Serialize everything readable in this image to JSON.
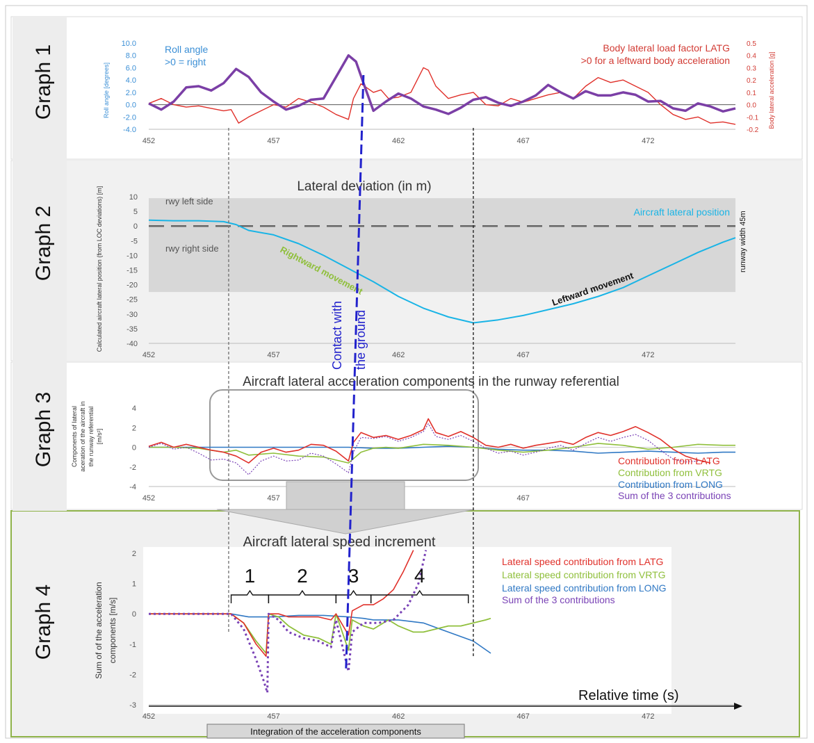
{
  "panels": {
    "g1": {
      "label": "Graph 1"
    },
    "g2": {
      "label": "Graph 2"
    },
    "g3": {
      "label": "Graph 3"
    },
    "g4": {
      "label": "Graph 4"
    }
  },
  "colors": {
    "roll": "#7b3fa6",
    "latg": "#e0302a",
    "lateral_position": "#19b4e6",
    "vrtg": "#8fbf3b",
    "long": "#2f78c4",
    "sum": "#7a43b6",
    "contact_line": "#2222cc",
    "runway_fill": "#d7d7d7",
    "panel4_border": "#8fb34a"
  },
  "chart_data": [
    {
      "id": "graph1",
      "type": "line",
      "xlim": [
        452,
        475.5
      ],
      "x_ticks": [
        "452",
        "457",
        "462",
        "467",
        "472"
      ],
      "ylabel_left": "Roll angle [degrees]",
      "ylim_left": [
        -4,
        10
      ],
      "y_ticks_left": [
        "10.0",
        "8.0",
        "6.0",
        "4.0",
        "2.0",
        "0.0",
        "-2.0",
        "-4.0"
      ],
      "ylabel_right": "Body lateral acceleration [g]",
      "ylim_right": [
        -0.2,
        0.5
      ],
      "y_ticks_right": [
        "0.5",
        "0.4",
        "0.3",
        "0.2",
        "0.1",
        "0.0",
        "-0.1",
        "-0.2"
      ],
      "grid": false,
      "legend_left": [
        "Roll angle",
        ">0 = right"
      ],
      "legend_right": [
        "Body lateral load factor LATG",
        ">0 for a leftward body acceleration"
      ],
      "series": [
        {
          "axis": "left",
          "x": [
            452,
            452.5,
            453,
            453.5,
            454,
            454.5,
            455,
            455.5,
            456,
            456.5,
            457,
            457.5,
            458,
            458.5,
            459,
            459.5,
            460,
            460.3,
            460.6,
            461,
            461.5,
            462,
            462.5,
            463,
            463.5,
            464,
            464.5,
            465,
            465.5,
            466,
            466.5,
            467,
            467.5,
            468,
            468.5,
            469,
            469.5,
            470,
            470.5,
            471,
            471.5,
            472,
            472.5,
            473,
            473.5,
            474,
            474.5,
            475,
            475.5
          ],
          "y": [
            0.2,
            -0.8,
            0.5,
            2.8,
            3.0,
            2.3,
            3.5,
            5.8,
            4.5,
            2.0,
            0.5,
            -0.8,
            -0.2,
            0.8,
            1.0,
            4.5,
            8.0,
            7.0,
            3.5,
            -1.0,
            0.5,
            1.8,
            1.0,
            -0.3,
            -0.8,
            -1.5,
            -0.5,
            0.8,
            1.2,
            0.3,
            -0.2,
            0.5,
            1.5,
            3.2,
            2.0,
            1.0,
            2.2,
            1.5,
            1.5,
            2.0,
            1.6,
            0.5,
            0.6,
            -0.6,
            -1.0,
            0.2,
            -0.3,
            -1.1,
            -0.6
          ]
        },
        {
          "axis": "right",
          "x": [
            452,
            452.5,
            453,
            453.5,
            454,
            454.5,
            455,
            455.3,
            455.6,
            456,
            456.5,
            457,
            457.5,
            458,
            458.5,
            459,
            459.5,
            460,
            460.2,
            460.5,
            461,
            461.3,
            461.6,
            462,
            462.5,
            463,
            463.2,
            463.5,
            464,
            464.5,
            465,
            465.5,
            466,
            466.5,
            467,
            467.5,
            468,
            468.5,
            469,
            469.5,
            470,
            470.5,
            471,
            471.5,
            472,
            472.5,
            473,
            473.5,
            474,
            474.5,
            475,
            475.5
          ],
          "y": [
            0.01,
            0.05,
            0.0,
            -0.02,
            -0.01,
            -0.03,
            -0.05,
            -0.04,
            -0.15,
            -0.1,
            -0.05,
            0.0,
            -0.02,
            0.05,
            0.02,
            -0.02,
            -0.08,
            -0.12,
            0.05,
            0.17,
            0.1,
            0.12,
            0.05,
            0.06,
            0.1,
            0.3,
            0.28,
            0.15,
            0.05,
            0.08,
            0.1,
            0.0,
            -0.01,
            0.05,
            0.02,
            0.05,
            0.08,
            0.1,
            0.05,
            0.15,
            0.22,
            0.18,
            0.2,
            0.15,
            0.1,
            0.0,
            -0.08,
            -0.12,
            -0.1,
            -0.15,
            -0.14,
            -0.16
          ]
        }
      ]
    },
    {
      "id": "graph2",
      "type": "line",
      "title": "Lateral deviation (in m)",
      "xlim": [
        452,
        475.5
      ],
      "x_ticks": [
        "452",
        "457",
        "462",
        "467",
        "472"
      ],
      "ylim": [
        -40,
        10
      ],
      "y_ticks": [
        "10",
        "5",
        "0",
        "-5",
        "-10",
        "-15",
        "-20",
        "-25",
        "-30",
        "-35",
        "-40"
      ],
      "ylabel": "Calculated aircraft lateral position (from LOC deviations) [m]",
      "runway_band": [
        -22.5,
        9.5
      ],
      "runway_labels": {
        "left": "rwy left side",
        "right": "rwy right side",
        "width": "runway width 45m"
      },
      "grid": false,
      "annotations": [
        "Aircraft lateral position",
        "Rightward movement",
        "Leftward movement",
        "Contact with the ground"
      ],
      "series": [
        {
          "name": "Aircraft lateral position",
          "x": [
            452,
            453,
            454,
            455,
            455.5,
            456,
            457,
            458,
            459,
            460,
            461,
            462,
            463,
            464,
            465,
            466,
            467,
            468,
            469,
            470,
            471,
            472,
            473,
            474,
            475,
            475.5
          ],
          "y": [
            2.0,
            1.8,
            1.8,
            1.5,
            0.5,
            -1.5,
            -3.0,
            -6.0,
            -10.0,
            -14.5,
            -19.0,
            -24.0,
            -28.0,
            -31.0,
            -33.0,
            -32.0,
            -30.5,
            -28.5,
            -26.5,
            -24.0,
            -21.0,
            -17.0,
            -13.0,
            -9.0,
            -5.5,
            -4.0
          ]
        }
      ]
    },
    {
      "id": "graph3",
      "type": "line",
      "title": "Aircraft lateral acceleration components in the runway referential",
      "xlim": [
        452,
        475.5
      ],
      "x_ticks": [
        "452",
        "457",
        "462",
        "467"
      ],
      "ylim": [
        -4,
        4
      ],
      "y_ticks": [
        "4",
        "2",
        "0",
        "-2",
        "-4"
      ],
      "ylabel": "Components of lateral acceration of the aircraft in the runway referential [m/s²]",
      "grid": false,
      "legend": [
        "Contribution from LATG",
        "Contribution from VRTG",
        "Contribution from LONG",
        "Sum of the 3 contributions"
      ],
      "series": [
        {
          "name": "Contribution from LATG",
          "x": [
            452,
            452.5,
            453,
            453.5,
            454,
            454.5,
            455,
            455.5,
            456,
            456.5,
            457,
            457.5,
            458,
            458.5,
            459,
            459.5,
            460,
            460.2,
            460.5,
            461,
            461.5,
            462,
            462.5,
            463,
            463.2,
            463.5,
            464,
            464.5,
            465,
            465.5,
            466,
            466.5,
            467,
            467.5,
            468,
            468.5,
            469,
            469.5,
            470,
            470.5,
            471,
            471.5,
            472,
            472.5,
            473,
            473.5,
            474,
            474.5
          ],
          "y": [
            0.1,
            0.5,
            0.0,
            0.3,
            0.0,
            -0.3,
            -0.5,
            -0.9,
            -1.6,
            -0.5,
            -0.1,
            -0.5,
            -0.3,
            0.3,
            0.2,
            -0.4,
            -1.4,
            0.5,
            1.5,
            1.0,
            1.2,
            0.8,
            1.2,
            1.8,
            2.9,
            1.5,
            1.1,
            1.6,
            1.0,
            0.2,
            0.0,
            0.3,
            -0.1,
            0.2,
            0.4,
            0.6,
            0.3,
            1.0,
            1.5,
            1.2,
            1.6,
            2.1,
            1.5,
            0.8,
            -0.2,
            -0.9,
            -1.3,
            -1.6
          ]
        },
        {
          "name": "Contribution from VRTG",
          "x": [
            452,
            453,
            454,
            455,
            455.5,
            456,
            457,
            458,
            459,
            459.5,
            460,
            460.5,
            461,
            461.5,
            462,
            463,
            464,
            465,
            466,
            467,
            468,
            469,
            470,
            471,
            472,
            473,
            474,
            475,
            475.5
          ],
          "y": [
            0.0,
            0.0,
            -0.1,
            -0.5,
            -0.3,
            -0.8,
            -0.6,
            -0.9,
            -1.0,
            -1.3,
            -1.6,
            -0.5,
            -0.1,
            0.0,
            -0.1,
            0.3,
            0.2,
            0.0,
            -0.3,
            -0.5,
            -0.3,
            0.0,
            0.4,
            0.2,
            -0.2,
            0.0,
            0.3,
            0.2,
            0.2
          ]
        },
        {
          "name": "Contribution from LONG",
          "x": [
            452,
            455,
            456,
            458,
            459.5,
            460,
            461,
            462,
            463,
            464,
            465,
            466,
            467,
            468,
            469,
            470,
            471,
            472,
            473,
            474,
            475,
            475.5
          ],
          "y": [
            0.0,
            0.0,
            0.0,
            0.0,
            0.0,
            0.0,
            -0.1,
            -0.1,
            0.0,
            0.1,
            0.0,
            -0.2,
            -0.3,
            -0.3,
            -0.4,
            -0.6,
            -0.5,
            -0.4,
            -0.5,
            -0.6,
            -0.5,
            -0.5
          ]
        },
        {
          "name": "Sum of the 3 contributions",
          "x": [
            452,
            452.5,
            453,
            453.5,
            454,
            454.5,
            455,
            455.5,
            456,
            456.5,
            457,
            457.5,
            458,
            458.5,
            459,
            459.5,
            460,
            460.2,
            460.5,
            461,
            461.5,
            462,
            462.5,
            463,
            463.2,
            463.5,
            464,
            464.5,
            465,
            465.5,
            466,
            466.5,
            467,
            467.5,
            468,
            468.5,
            469,
            469.5,
            470,
            470.5,
            471,
            471.5,
            472,
            472.5,
            473,
            473.5,
            474
          ],
          "y": [
            0.0,
            0.4,
            -0.2,
            0.0,
            -0.6,
            -1.3,
            -1.2,
            -1.6,
            -2.8,
            -1.4,
            -0.9,
            -1.4,
            -1.3,
            -0.6,
            -0.9,
            -1.7,
            -2.6,
            -0.5,
            1.0,
            0.9,
            1.1,
            0.6,
            1.0,
            1.6,
            2.4,
            1.1,
            0.8,
            1.2,
            0.6,
            -0.1,
            -0.6,
            -0.4,
            -0.8,
            -0.5,
            -0.1,
            0.2,
            -0.3,
            0.4,
            1.0,
            0.6,
            1.0,
            1.3,
            0.7,
            -0.3,
            -1.2,
            -1.5,
            -1.4
          ]
        }
      ]
    },
    {
      "id": "graph4",
      "type": "line",
      "title": "Aircraft lateral speed increment",
      "xlim": [
        452,
        475.5
      ],
      "x_ticks": [
        "452",
        "457",
        "462",
        "467",
        "472"
      ],
      "ylim": [
        -3,
        2
      ],
      "y_ticks": [
        "2",
        "1",
        "0",
        "-1",
        "-2",
        "-3"
      ],
      "ylabel": "Sum of of the acceleration components [m/s]",
      "xlabel": "Relative time (s)",
      "footer": "Integration of the acceleration components",
      "phase_labels": [
        "1",
        "2",
        "3",
        "4"
      ],
      "grid": false,
      "legend": [
        "Lateral speed contribution from LATG",
        "Lateral speed contribution from VRTG",
        "Lateral speed contribution from LONG",
        "Sum of the 3 contributions"
      ],
      "series": [
        {
          "name": "Lateral speed contribution from LATG",
          "x": [
            452,
            455.3,
            455.8,
            456.3,
            456.7,
            456.8,
            457.2,
            457.6,
            458.2,
            458.8,
            459.3,
            459.5,
            460,
            460.15,
            460.6,
            461,
            461.4,
            461.8,
            462.2,
            462.6
          ],
          "y": [
            0.0,
            0.0,
            -0.3,
            -1.0,
            -1.4,
            0.0,
            0.0,
            -0.1,
            -0.1,
            -0.1,
            -0.2,
            0.0,
            -0.7,
            0.1,
            0.3,
            0.3,
            0.5,
            0.8,
            1.4,
            2.1
          ]
        },
        {
          "name": "Lateral speed contribution from VRTG",
          "x": [
            452,
            455.3,
            455.8,
            456.3,
            456.7,
            456.8,
            457.2,
            457.6,
            458.2,
            458.8,
            459.3,
            459.5,
            460,
            460.15,
            460.6,
            461,
            461.6,
            462,
            462.6,
            463,
            463.5,
            464,
            464.5,
            465,
            465.5,
            465.7
          ],
          "y": [
            0.0,
            0.0,
            -0.3,
            -0.9,
            -1.3,
            0.0,
            -0.1,
            -0.4,
            -0.7,
            -0.8,
            -1.0,
            0.0,
            -1.2,
            -0.2,
            -0.4,
            -0.5,
            -0.2,
            -0.4,
            -0.6,
            -0.6,
            -0.5,
            -0.4,
            -0.4,
            -0.3,
            -0.2,
            -0.15
          ]
        },
        {
          "name": "Lateral speed contribution from LONG",
          "x": [
            452,
            455.3,
            456,
            457,
            458,
            459,
            460,
            460.6,
            461,
            462,
            463,
            464,
            465,
            465.7
          ],
          "y": [
            0.0,
            0.0,
            -0.1,
            -0.1,
            -0.05,
            -0.05,
            -0.1,
            -0.15,
            -0.2,
            -0.2,
            -0.3,
            -0.6,
            -0.9,
            -1.3
          ]
        },
        {
          "name": "Sum of the 3 contributions",
          "x": [
            452,
            455.3,
            455.8,
            456.3,
            456.6,
            456.75,
            456.8,
            457.2,
            457.6,
            458.2,
            458.8,
            459.3,
            459.5,
            460,
            460.15,
            460.6,
            461.2,
            461.8,
            462.4,
            462.8,
            463.1
          ],
          "y": [
            0.0,
            0.0,
            -0.5,
            -1.5,
            -2.2,
            -2.6,
            0.0,
            -0.2,
            -0.6,
            -0.8,
            -0.9,
            -1.1,
            -0.2,
            -1.9,
            -0.6,
            -0.3,
            -0.3,
            -0.2,
            0.3,
            1.0,
            2.1
          ]
        }
      ]
    }
  ]
}
